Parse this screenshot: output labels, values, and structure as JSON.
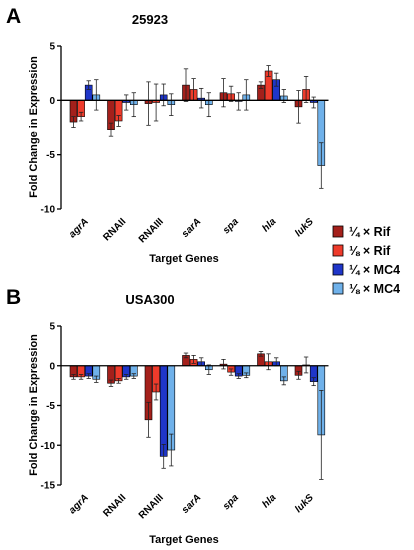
{
  "shared": {
    "ylabel": "Fold Change in Expression",
    "xlabel": "Target Genes"
  },
  "legend": {
    "items": [
      {
        "label": "¼ × Rif",
        "color": "#a4201b"
      },
      {
        "label": "⅛ × Rif",
        "color": "#ee3b2b"
      },
      {
        "label": "¼ × MC4",
        "color": "#1f36c9"
      },
      {
        "label": "⅛ × MC4",
        "color": "#6fb1ea"
      }
    ]
  },
  "chart_data": [
    {
      "panel": "A",
      "title": "25923",
      "type": "bar",
      "ylim": [
        -10,
        5
      ],
      "yticks": [
        "5",
        "0",
        "-5",
        "-10"
      ],
      "ytick_values": [
        5,
        0,
        -5,
        -10
      ],
      "categories": [
        "agrA",
        "RNAII",
        "RNAIII",
        "sarA",
        "spa",
        "hla",
        "lukS"
      ],
      "italic_categories": [
        true,
        false,
        false,
        true,
        true,
        true,
        true
      ],
      "xlabel": "Target Genes",
      "ylabel": "Fold Change in Expression",
      "series": [
        {
          "name": "¼ × Rif",
          "color": "#a4201b",
          "values": [
            -2.0,
            -2.7,
            -0.3,
            1.4,
            0.7,
            1.4,
            -0.6
          ],
          "errors": [
            0.5,
            0.6,
            2.0,
            1.5,
            1.3,
            0.3,
            1.5
          ]
        },
        {
          "name": "⅛ × Rif",
          "color": "#ee3b2b",
          "values": [
            -1.5,
            -1.9,
            -0.2,
            1.0,
            0.6,
            2.7,
            1.0
          ],
          "errors": [
            0.4,
            0.5,
            1.7,
            1.0,
            0.7,
            0.5,
            1.2
          ]
        },
        {
          "name": "¼ × MC4",
          "color": "#1f36c9",
          "values": [
            1.4,
            -0.2,
            0.5,
            0.2,
            -0.1,
            1.9,
            -0.2
          ],
          "errors": [
            0.4,
            0.7,
            1.0,
            0.9,
            0.8,
            0.6,
            0.5
          ]
        },
        {
          "name": "⅛ × MC4",
          "color": "#6fb1ea",
          "values": [
            0.5,
            -0.4,
            -0.4,
            -0.4,
            0.5,
            0.4,
            -6.0
          ],
          "errors": [
            1.4,
            1.1,
            1.0,
            1.1,
            1.4,
            0.6,
            2.1
          ]
        }
      ]
    },
    {
      "panel": "B",
      "title": "USA300",
      "type": "bar",
      "ylim": [
        -15,
        5
      ],
      "yticks": [
        "5",
        "0",
        "-5",
        "-10",
        "-15"
      ],
      "ytick_values": [
        5,
        0,
        -5,
        -10,
        -15
      ],
      "categories": [
        "agrA",
        "RNAII",
        "RNAIII",
        "sarA",
        "spa",
        "hla",
        "lukS"
      ],
      "italic_categories": [
        true,
        false,
        false,
        true,
        true,
        true,
        true
      ],
      "xlabel": "Target Genes",
      "ylabel": "Fold Change in Expression",
      "series": [
        {
          "name": "¼ × Rif",
          "color": "#a4201b",
          "values": [
            -1.4,
            -2.2,
            -6.8,
            1.3,
            0.2,
            1.5,
            -1.2
          ],
          "errors": [
            0.3,
            0.4,
            2.2,
            0.3,
            0.6,
            0.3,
            0.5
          ]
        },
        {
          "name": "⅛ × Rif",
          "color": "#ee3b2b",
          "values": [
            -1.4,
            -1.9,
            -3.3,
            0.8,
            -0.8,
            0.5,
            0.1
          ],
          "errors": [
            0.3,
            0.3,
            1.0,
            0.5,
            0.4,
            1.0,
            1.0
          ]
        },
        {
          "name": "¼ × MC4",
          "color": "#1f36c9",
          "values": [
            -1.3,
            -1.4,
            -11.4,
            0.5,
            -1.3,
            0.5,
            -2.0
          ],
          "errors": [
            0.3,
            0.3,
            1.5,
            0.5,
            0.3,
            0.5,
            0.5
          ]
        },
        {
          "name": "⅛ × MC4",
          "color": "#6fb1ea",
          "values": [
            -1.7,
            -1.3,
            -10.6,
            -0.5,
            -1.2,
            -1.9,
            -8.7
          ],
          "errors": [
            0.4,
            0.3,
            2.0,
            0.6,
            0.3,
            0.5,
            5.6
          ]
        }
      ]
    }
  ]
}
